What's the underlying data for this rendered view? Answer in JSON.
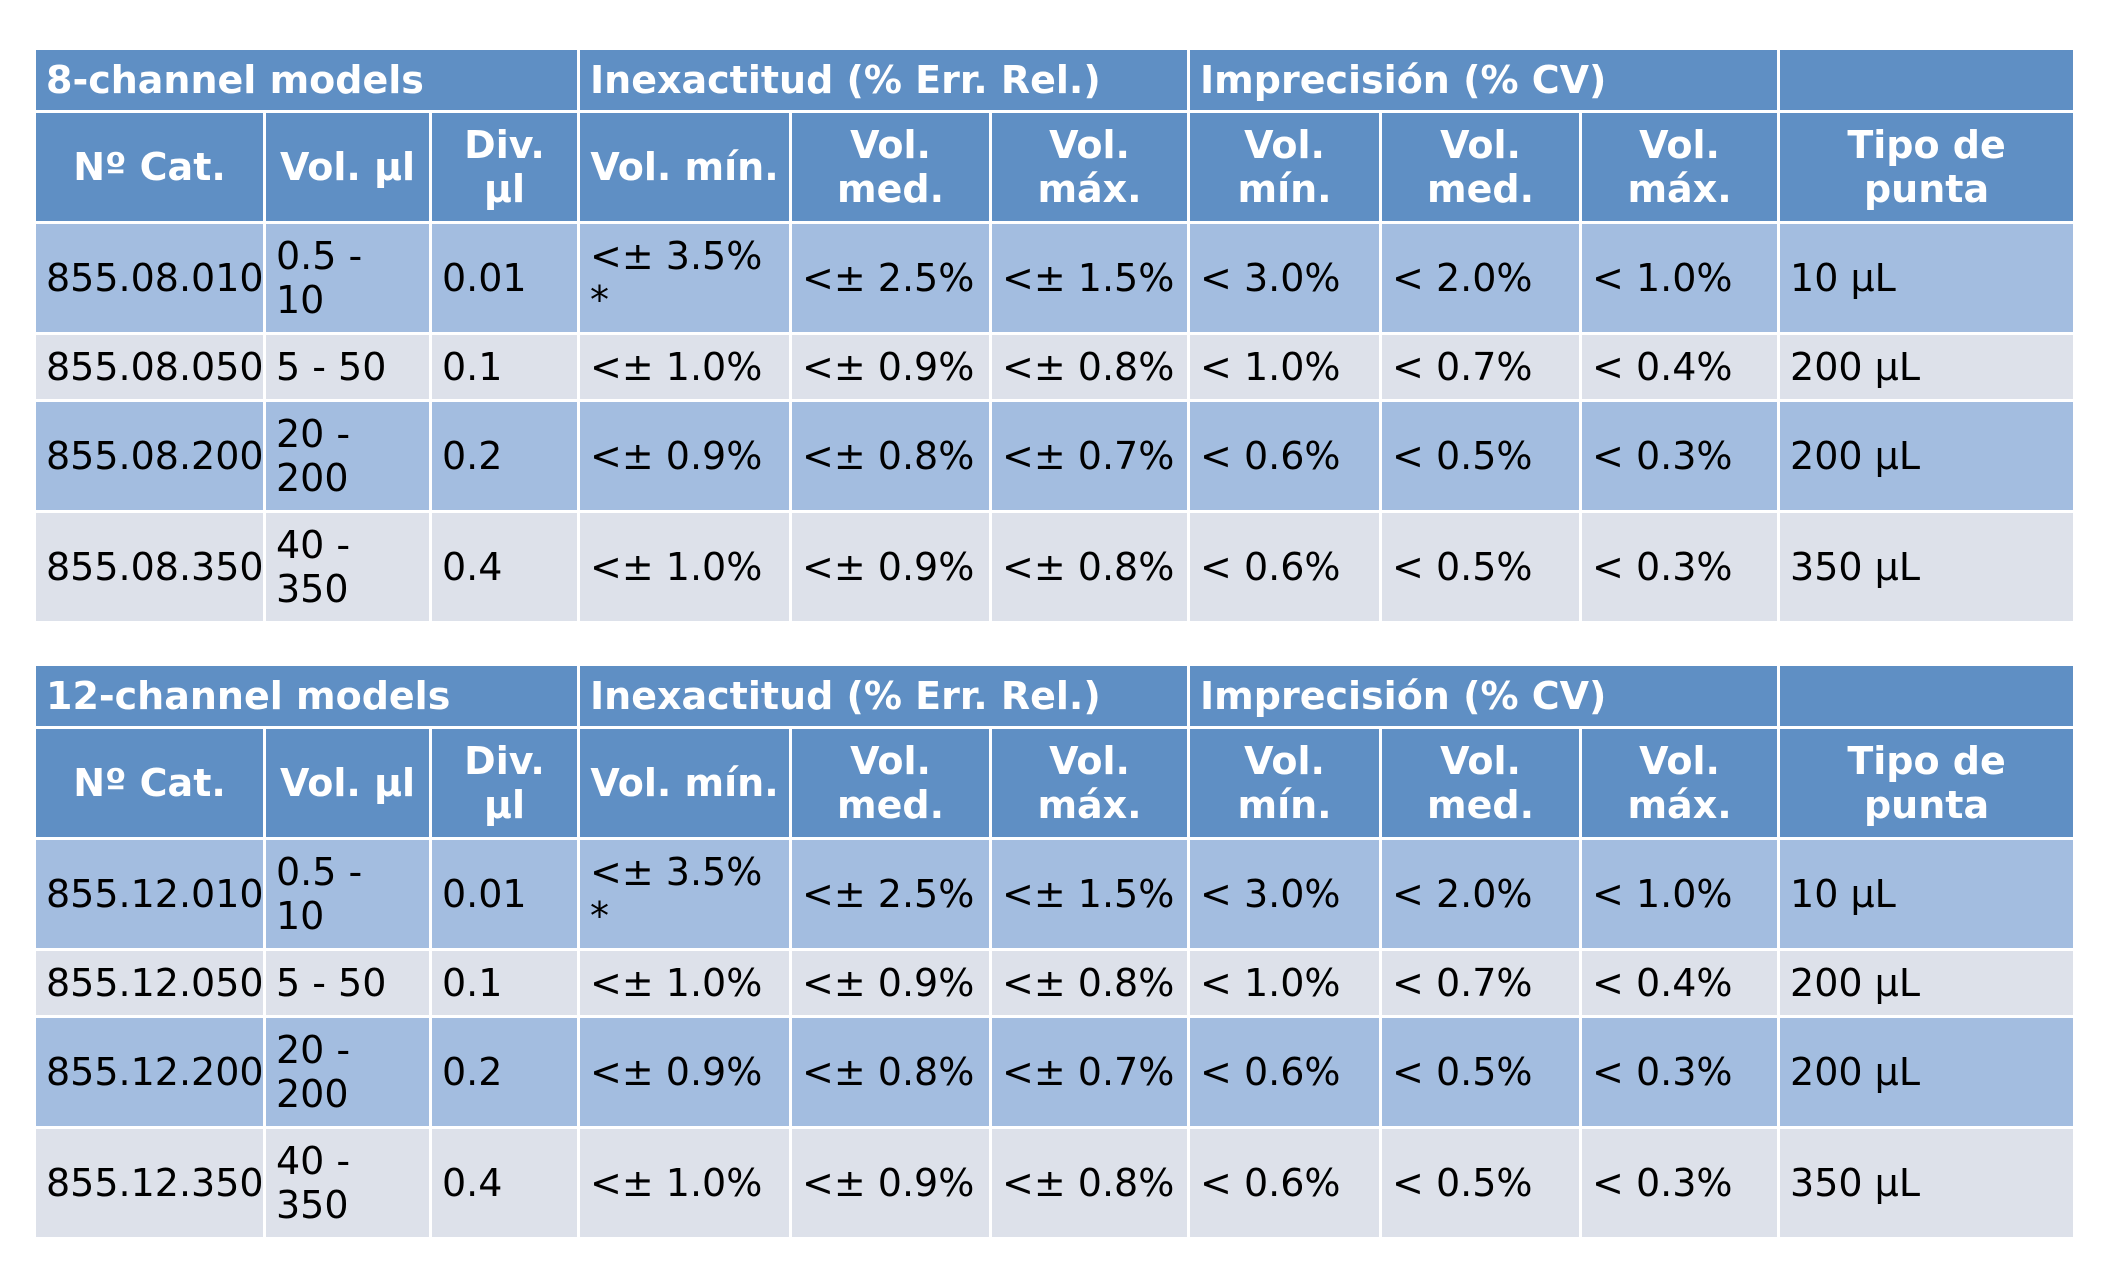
{
  "tables": [
    {
      "title": "8-channel models",
      "group_inexactitud": "Inexactitud (% Err. Rel.)",
      "group_imprecision": "Imprecisión (% CV)",
      "col_cat": "Nº Cat.",
      "col_vol": "Vol. µl",
      "col_div": "Div. µl",
      "col_inex_min": "Vol. mín.",
      "col_inex_med": "Vol. med.",
      "col_inex_max": "Vol. máx.",
      "col_imp_min": "Vol. mín.",
      "col_imp_med": "Vol. med.",
      "col_imp_max": "Vol. máx.",
      "col_tipo": "Tipo de punta",
      "rows": [
        {
          "cat": "855.08.010",
          "vol": "0.5 - 10",
          "div": "0.01",
          "inex_min": "<± 3.5% *",
          "inex_med": "<± 2.5%",
          "inex_max": "<± 1.5%",
          "imp_min": "< 3.0%",
          "imp_med": "< 2.0%",
          "imp_max": "< 1.0%",
          "tipo": "10 µL"
        },
        {
          "cat": "855.08.050",
          "vol": "5 - 50",
          "div": "0.1",
          "inex_min": "<± 1.0%",
          "inex_med": "<± 0.9%",
          "inex_max": "<± 0.8%",
          "imp_min": "< 1.0%",
          "imp_med": "< 0.7%",
          "imp_max": "< 0.4%",
          "tipo": "200 µL"
        },
        {
          "cat": "855.08.200",
          "vol": "20 - 200",
          "div": "0.2",
          "inex_min": "<± 0.9%",
          "inex_med": "<± 0.8%",
          "inex_max": "<± 0.7%",
          "imp_min": "< 0.6%",
          "imp_med": "< 0.5%",
          "imp_max": "< 0.3%",
          "tipo": "200 µL"
        },
        {
          "cat": "855.08.350",
          "vol": "40 - 350",
          "div": "0.4",
          "inex_min": "<± 1.0%",
          "inex_med": "<± 0.9%",
          "inex_max": "<± 0.8%",
          "imp_min": "< 0.6%",
          "imp_med": "< 0.5%",
          "imp_max": "< 0.3%",
          "tipo": "350 µL"
        }
      ]
    },
    {
      "title": "12-channel models",
      "group_inexactitud": "Inexactitud (% Err. Rel.)",
      "group_imprecision": "Imprecisión (% CV)",
      "col_cat": "Nº Cat.",
      "col_vol": "Vol. µl",
      "col_div": "Div. µl",
      "col_inex_min": "Vol. mín.",
      "col_inex_med": "Vol. med.",
      "col_inex_max": "Vol. máx.",
      "col_imp_min": "Vol. mín.",
      "col_imp_med": "Vol. med.",
      "col_imp_max": "Vol. máx.",
      "col_tipo": "Tipo de punta",
      "rows": [
        {
          "cat": "855.12.010",
          "vol": "0.5 - 10",
          "div": "0.01",
          "inex_min": "<± 3.5% *",
          "inex_med": "<± 2.5%",
          "inex_max": "<± 1.5%",
          "imp_min": "< 3.0%",
          "imp_med": "< 2.0%",
          "imp_max": "< 1.0%",
          "tipo": "10 µL"
        },
        {
          "cat": "855.12.050",
          "vol": "5 - 50",
          "div": "0.1",
          "inex_min": "<± 1.0%",
          "inex_med": "<± 0.9%",
          "inex_max": "<± 0.8%",
          "imp_min": "< 1.0%",
          "imp_med": "< 0.7%",
          "imp_max": "< 0.4%",
          "tipo": "200 µL"
        },
        {
          "cat": "855.12.200",
          "vol": "20 - 200",
          "div": "0.2",
          "inex_min": "<± 0.9%",
          "inex_med": "<± 0.8%",
          "inex_max": "<± 0.7%",
          "imp_min": "< 0.6%",
          "imp_med": "< 0.5%",
          "imp_max": "< 0.3%",
          "tipo": "200 µL"
        },
        {
          "cat": "855.12.350",
          "vol": "40 - 350",
          "div": "0.4",
          "inex_min": "<± 1.0%",
          "inex_med": "<± 0.9%",
          "inex_max": "<± 0.8%",
          "imp_min": "< 0.6%",
          "imp_med": "< 0.5%",
          "imp_max": "< 0.3%",
          "tipo": "350 µL"
        }
      ]
    }
  ]
}
